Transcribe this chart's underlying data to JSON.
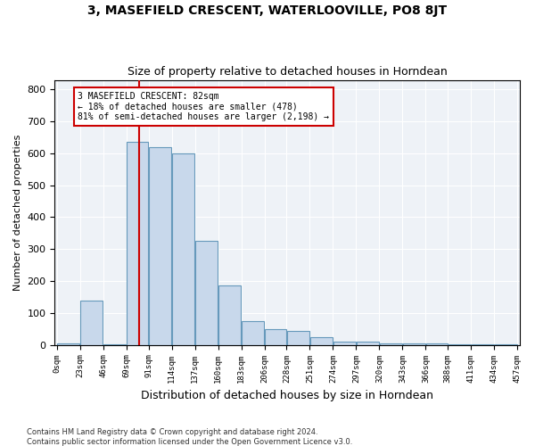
{
  "title": "3, MASEFIELD CRESCENT, WATERLOOVILLE, PO8 8JT",
  "subtitle": "Size of property relative to detached houses in Horndean",
  "xlabel": "Distribution of detached houses by size in Horndean",
  "ylabel": "Number of detached properties",
  "bar_color": "#c8d8eb",
  "bar_edge_color": "#6699bb",
  "bg_color": "#eef2f7",
  "grid_color": "#ffffff",
  "annotation_line1": "3 MASEFIELD CRESCENT: 82sqm",
  "annotation_line2": "← 18% of detached houses are smaller (478)",
  "annotation_line3": "81% of semi-detached houses are larger (2,198) →",
  "property_size": 82,
  "bin_edges": [
    0,
    23,
    46,
    69,
    91,
    114,
    137,
    160,
    183,
    206,
    228,
    251,
    274,
    297,
    320,
    343,
    366,
    388,
    411,
    434,
    457
  ],
  "bin_labels": [
    "0sqm",
    "23sqm",
    "46sqm",
    "69sqm",
    "91sqm",
    "114sqm",
    "137sqm",
    "160sqm",
    "183sqm",
    "206sqm",
    "228sqm",
    "251sqm",
    "274sqm",
    "297sqm",
    "320sqm",
    "343sqm",
    "366sqm",
    "388sqm",
    "411sqm",
    "434sqm",
    "457sqm"
  ],
  "bar_heights": [
    5,
    140,
    2,
    635,
    620,
    600,
    325,
    185,
    75,
    50,
    45,
    25,
    10,
    10,
    5,
    5,
    5,
    2,
    2,
    2
  ],
  "ylim": [
    0,
    830
  ],
  "yticks": [
    0,
    100,
    200,
    300,
    400,
    500,
    600,
    700,
    800
  ],
  "footer": "Contains HM Land Registry data © Crown copyright and database right 2024.\nContains public sector information licensed under the Open Government Licence v3.0.",
  "vline_color": "#cc0000",
  "box_edge_color": "#cc0000"
}
